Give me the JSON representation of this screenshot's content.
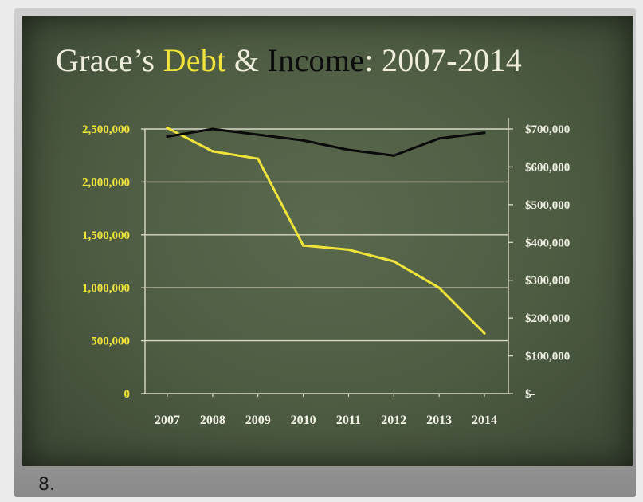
{
  "slide": {
    "title": {
      "part1": "Grace’s ",
      "debt": "Debt",
      "amp": " & ",
      "income": "Income",
      "part2": ":  2007-2014"
    },
    "number": "8."
  },
  "colors": {
    "debt": "#f0e43a",
    "income": "#0a0a0a",
    "grid": "#d9d9c8",
    "background": "#4f5d44"
  },
  "chart_data": {
    "type": "line",
    "title": "Grace’s Debt & Income: 2007-2014",
    "categories": [
      "2007",
      "2008",
      "2009",
      "2010",
      "2011",
      "2012",
      "2013",
      "2014"
    ],
    "y_left": {
      "ticks": [
        "0",
        "500,000",
        "1,000,000",
        "1,500,000",
        "2,000,000",
        "2,500,000"
      ],
      "range": [
        0,
        2500000
      ]
    },
    "y_right": {
      "ticks": [
        "$-",
        "$100,000",
        "$200,000",
        "$300,000",
        "$400,000",
        "$500,000",
        "$600,000",
        "$700,000"
      ],
      "range": [
        0,
        700000
      ]
    },
    "series": [
      {
        "name": "Debt",
        "axis": "left",
        "color": "#f0e43a",
        "values": [
          2510000,
          2290000,
          2220000,
          1400000,
          1360000,
          1250000,
          1000000,
          570000
        ]
      },
      {
        "name": "Income",
        "axis": "right",
        "color": "#0a0a0a",
        "values": [
          680000,
          700000,
          685000,
          670000,
          645000,
          630000,
          675000,
          690000
        ]
      }
    ],
    "grid": true
  }
}
